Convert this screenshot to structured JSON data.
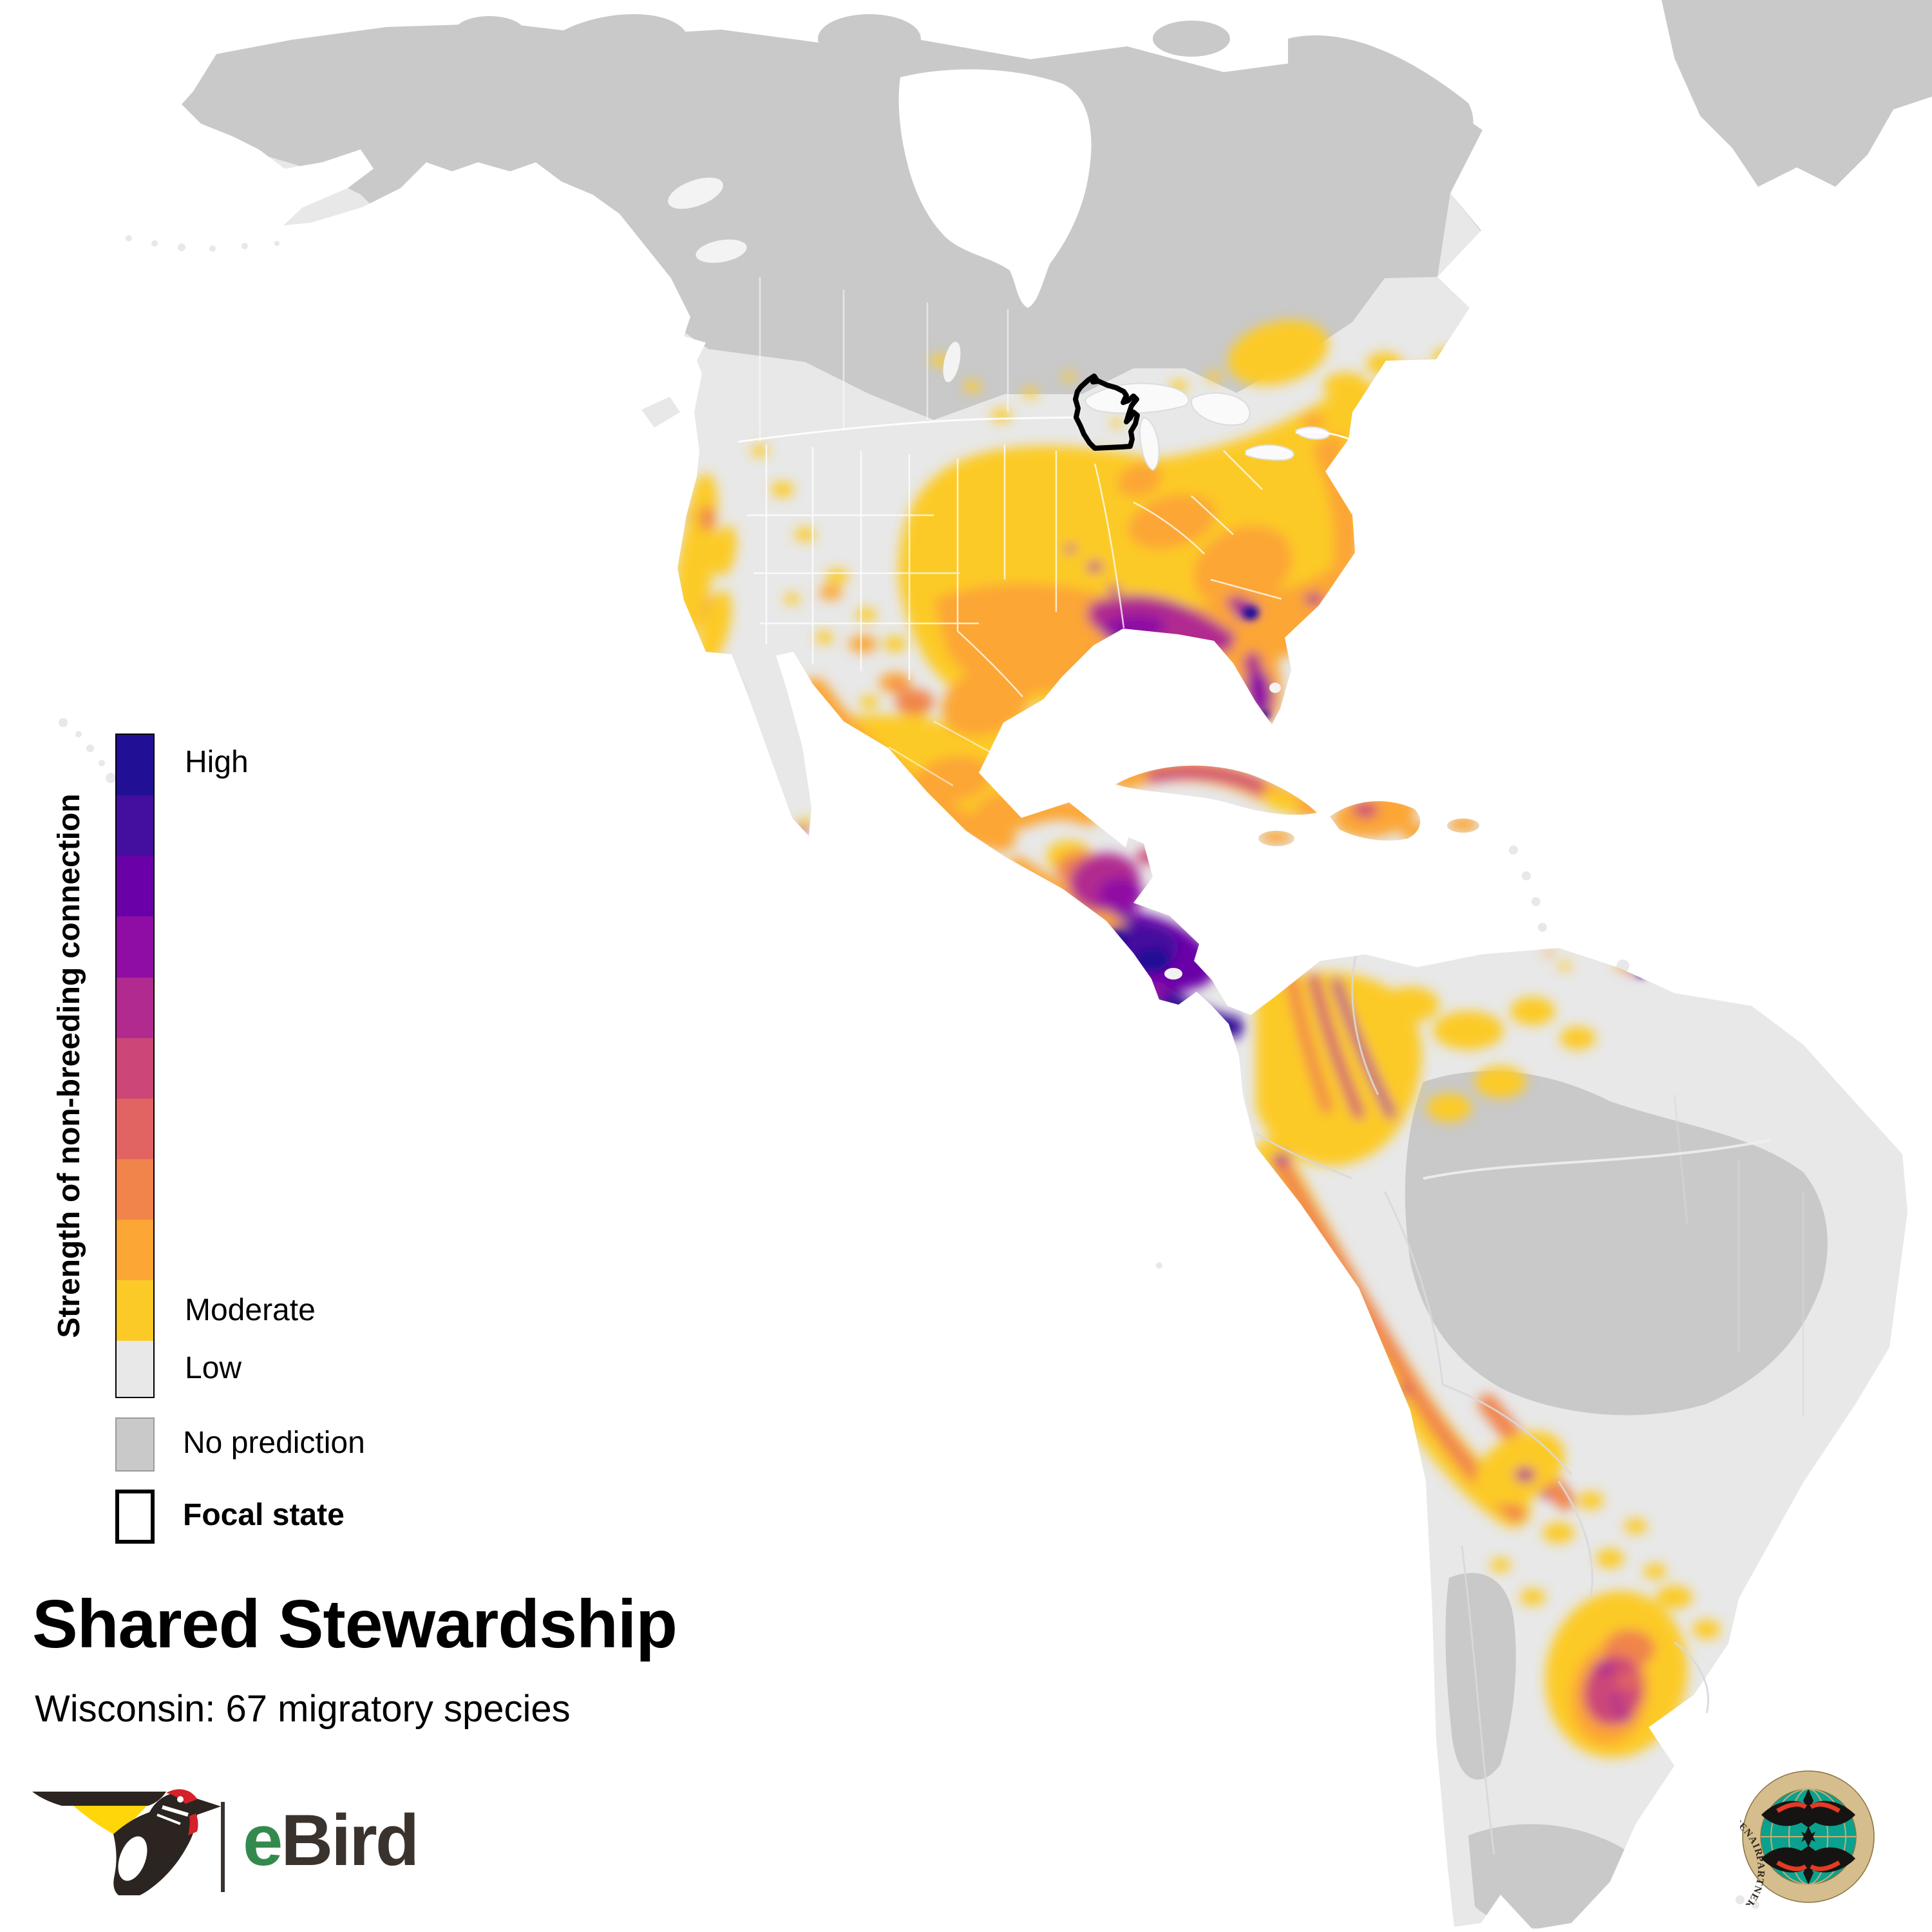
{
  "header": {
    "title": "Shared Stewardship",
    "subtitle": "Wisconsin: 67 migratory species"
  },
  "legend": {
    "axis_label": "Strength of non-breeding connection",
    "labels": {
      "high": "High",
      "moderate": "Moderate",
      "low": "Low",
      "no_prediction": "No prediction",
      "focal_state": "Focal state"
    },
    "ramp_colors_top_to_bottom": [
      "#211095",
      "#440f9e",
      "#6a00a8",
      "#8f0da4",
      "#b12a90",
      "#cc4778",
      "#e16462",
      "#f1844b",
      "#fca636",
      "#fcca26"
    ],
    "low_color": "#e8e8e8",
    "no_prediction_color": "#c9c9c9",
    "focal_state_fill": "#ffffff",
    "focal_state_border": "#000000"
  },
  "map": {
    "focal_state": "Wisconsin",
    "focal_state_outline_color": "#000000",
    "ocean_color": "#ffffff",
    "land_low_color": "#e8e8e8",
    "no_prediction_color": "#c9c9c9",
    "lake_color": "#fafafa",
    "border_line_color": "#ffffff"
  },
  "logos": {
    "ebird": {
      "wordmark_e": "e",
      "wordmark_rest": "Bird",
      "e_color": "#348a4e",
      "text_color": "#3a332d",
      "crown_color": "#d3222a",
      "wing_patch_color": "#ffd60a",
      "body_color": "#2b2420"
    },
    "partners_in_flight": {
      "ring_text": "PARTNERS IN FLIGHT • COMPAÑEROS EN VUELO • PARTENAIRES D'ENVOL •",
      "ring_color": "#d5bd8d",
      "globe_color": "#0aa18f",
      "grid_color": "#c9ad74",
      "bird_color": "#161412",
      "bird_accent_color": "#e23b26",
      "text_color": "#2f2a1e"
    }
  }
}
